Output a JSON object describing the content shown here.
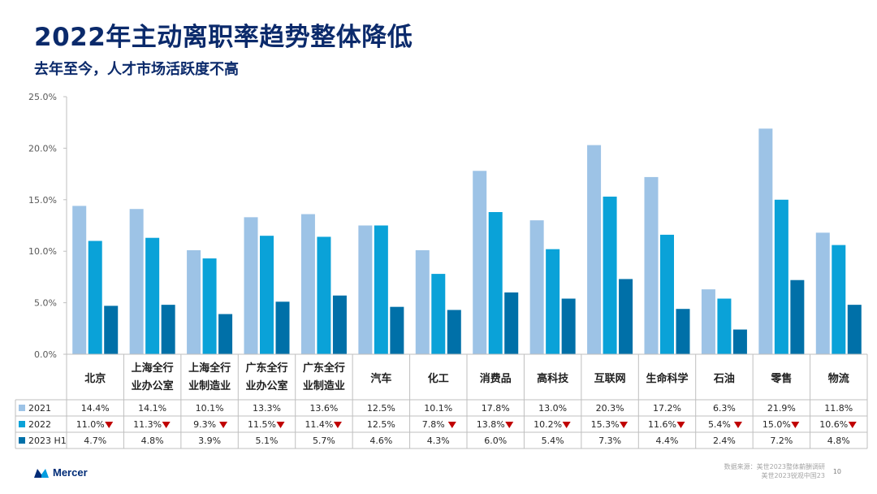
{
  "page": {
    "title": "2022年主动离职率趋势整体降低",
    "subtitle": "去年至今，人才市场活跃度不高",
    "brand": "Mercer",
    "source_line1": "数据来源：美世2023整体薪酬调研",
    "source_line2": "美世2023锐观中国23",
    "page_number": "10"
  },
  "chart_data": {
    "type": "bar",
    "title": "",
    "xlabel": "",
    "ylabel": "",
    "ylim": [
      0,
      25
    ],
    "yticks": [
      "0.0%",
      "5.0%",
      "10.0%",
      "15.0%",
      "20.0%",
      "25.0%"
    ],
    "categories": [
      [
        "北京"
      ],
      [
        "上海全行",
        "业办公室"
      ],
      [
        "上海全行",
        "业制造业"
      ],
      [
        "广东全行",
        "业办公室"
      ],
      [
        "广东全行",
        "业制造业"
      ],
      [
        "汽车"
      ],
      [
        "化工"
      ],
      [
        "消费品"
      ],
      [
        "高科技"
      ],
      [
        "互联网"
      ],
      [
        "生命科学"
      ],
      [
        "石油"
      ],
      [
        "零售"
      ],
      [
        "物流"
      ]
    ],
    "series": [
      {
        "name": "2021",
        "color": "#9dc3e6",
        "values": [
          14.4,
          14.1,
          10.1,
          13.3,
          13.6,
          12.5,
          10.1,
          17.8,
          13.0,
          20.3,
          17.2,
          6.3,
          21.9,
          11.8
        ],
        "labels": [
          "14.4%",
          "14.1%",
          "10.1%",
          "13.3%",
          "13.6%",
          "12.5%",
          "10.1%",
          "17.8%",
          "13.0%",
          "20.3%",
          "17.2%",
          "6.3%",
          "21.9%",
          "11.8%"
        ],
        "down": []
      },
      {
        "name": "2022",
        "color": "#0aa2d8",
        "values": [
          11.0,
          11.3,
          9.3,
          11.5,
          11.4,
          12.5,
          7.8,
          13.8,
          10.2,
          15.3,
          11.6,
          5.4,
          15.0,
          10.6
        ],
        "labels": [
          "11.0%",
          "11.3%",
          "9.3%",
          "11.5%",
          "11.4%",
          "12.5%",
          "7.8%",
          "13.8%",
          "10.2%",
          "15.3%",
          "11.6%",
          "5.4%",
          "15.0%",
          "10.6%"
        ],
        "down": [
          true,
          true,
          true,
          true,
          true,
          false,
          true,
          true,
          true,
          true,
          true,
          true,
          true,
          true
        ]
      },
      {
        "name": "2023 H1",
        "color": "#0070a8",
        "values": [
          4.7,
          4.8,
          3.9,
          5.1,
          5.7,
          4.6,
          4.3,
          6.0,
          5.4,
          7.3,
          4.4,
          2.4,
          7.2,
          4.8
        ],
        "labels": [
          "4.7%",
          "4.8%",
          "3.9%",
          "5.1%",
          "5.7%",
          "4.6%",
          "4.3%",
          "6.0%",
          "5.4%",
          "7.3%",
          "4.4%",
          "2.4%",
          "7.2%",
          "4.8%"
        ],
        "down": []
      }
    ],
    "down_marker_color": "#c00000",
    "grid": false,
    "legend": "data-table-below"
  }
}
